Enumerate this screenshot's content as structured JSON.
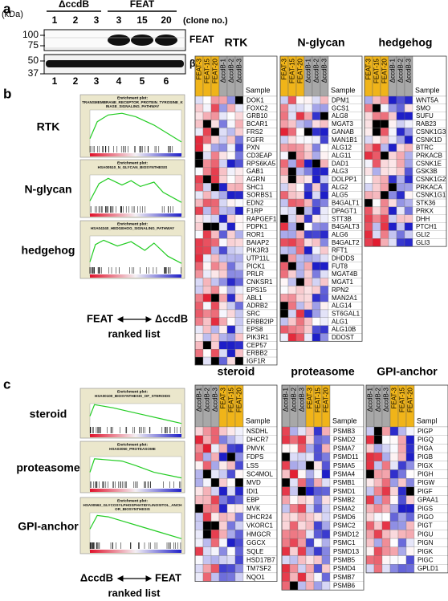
{
  "panel_labels": [
    "a",
    "b",
    "c"
  ],
  "blot": {
    "unit": "(kDa)",
    "groups": [
      "ΔccdB",
      "FEAT"
    ],
    "clones": [
      "1",
      "2",
      "3",
      "3",
      "15",
      "20"
    ],
    "clone_label": "(clone no.)",
    "bands": [
      "FEAT",
      "β-actin"
    ],
    "markers": [
      "100",
      "75",
      "50",
      "37"
    ],
    "lanes": [
      "1",
      "2",
      "3",
      "4",
      "5",
      "6"
    ]
  },
  "gsea_b": {
    "plots": [
      {
        "label": "RTK",
        "heading": "Enrichment plot:",
        "title": "TRANSMEMBRANE_RECEPTOR_PROTEIN_TYROSINE_KINASE_SIGNALING_PATHWAY"
      },
      {
        "label": "N-glycan",
        "heading": "Enrichment plot:",
        "title": "HSA00510_N_GLYCAN_BIOSYNTHESIS"
      },
      {
        "label": "hedgehog",
        "heading": "Enrichment plot:",
        "title": "HSA04340_HEDGEHOG_SIGNALING_PATHWAY"
      }
    ],
    "left": "FEAT",
    "right": "ΔccdB",
    "axis": "ranked list"
  },
  "heatmaps_b": [
    {
      "title": "RTK",
      "columns": [
        "FEAT-3",
        "FEAT-15",
        "FEAT-20",
        "ΔccdB-1",
        "ΔccdB-2",
        "ΔccdB-3"
      ],
      "sample": "Sample",
      "genes": [
        "DOK1",
        "FOXC2",
        "GRB10",
        "BCAR1",
        "FRS2",
        "FGFR",
        "PXN",
        "CD3EAP",
        "RPS6KA5",
        "GAB1",
        "AGRN",
        "SHC1",
        "SORBS1",
        "EDN2",
        "F1RP",
        "RAPGEF1",
        "PDPK1",
        "ROR1",
        "BAIAP2",
        "PIK3R3",
        "UTP11L",
        "PICK1",
        "PRLR",
        "CNKSR1",
        "EPS15",
        "ABL1",
        "ADRB2",
        "SRC",
        "ERBB2IP",
        "EPS8",
        "PIK3R1",
        "CEP57",
        "ERBB2",
        "IGF1R"
      ]
    },
    {
      "title": "N-glycan",
      "columns": [
        "FEAT-3",
        "FEAT-15",
        "FEAT-20",
        "ΔccdB-1",
        "ΔccdB-2",
        "ΔccdB-3"
      ],
      "sample": "Sample",
      "genes": [
        "DPM1",
        "GCS1",
        "ALG8",
        "MGAT3",
        "GANAB",
        "MAN1B1",
        "ALG12",
        "ALG11",
        "DAD1",
        "ALG3",
        "DOLPP1",
        "ALG2",
        "ALG5",
        "B4GALT1",
        "DPAGT1",
        "STT3B",
        "B4GALT3",
        "ALG6",
        "B4GALT2",
        "RFT1",
        "DHDDS",
        "FUT8",
        "MGAT4B",
        "MGAT1",
        "RPN2",
        "MAN2A1",
        "ALG14",
        "ST6GAL1",
        "ALG1",
        "ALG10B",
        "DDOST"
      ]
    },
    {
      "title": "hedgehog",
      "columns": [
        "FEAT-3",
        "FEAT-15",
        "FEAT-20",
        "ΔccdB-1",
        "ΔccdB-2",
        "ΔccdB-3"
      ],
      "sample": "Sample",
      "genes": [
        "WNT5A",
        "SMO",
        "SUFU",
        "RAB23",
        "CSNK1G3",
        "CSNK1D",
        "BTRC",
        "PRKACB",
        "CSNK1E",
        "GSK3B",
        "CSNK1G2",
        "PRKACA",
        "CSNK1G1",
        "STK36",
        "PRKX",
        "DHH",
        "PTCH1",
        "GLI2",
        "GLI3"
      ]
    }
  ],
  "gsea_c": {
    "plots": [
      {
        "label": "steroid",
        "heading": "Enrichment plot:",
        "title": "HSA00100_BIOSYNTHESIS_OF_STEROIDS"
      },
      {
        "label": "proteasome",
        "heading": "Enrichment plot:",
        "title": "HSA03050_PROTEASOME"
      },
      {
        "label": "GPI-anchor",
        "heading": "Enrichment plot:",
        "title": "HSA00563_GLYCOSYLPHOSPHATIDYLINOSITOL_ANCHOR_BIOSYNTHESIS"
      }
    ],
    "left": "ΔccdB",
    "right": "FEAT",
    "axis": "ranked list"
  },
  "heatmaps_c": [
    {
      "title": "steroid",
      "columns": [
        "ΔccdB-1",
        "ΔccdB-2",
        "ΔccdB-3",
        "FEAT-3",
        "FEAT-15",
        "FEAT-20"
      ],
      "sample": "Sample",
      "genes": [
        "NSDHL",
        "DHCR7",
        "PMVK",
        "FDPS",
        "LSS",
        "SC4MOL",
        "MVD",
        "IDI1",
        "EBP",
        "MVK",
        "DHCR24",
        "VKORC1",
        "HMGCR",
        "GGCX",
        "SQLE",
        "HSD17B7",
        "TM7SF2",
        "NQO1"
      ]
    },
    {
      "title": "proteasome",
      "columns": [
        "ΔccdB-1",
        "ΔccdB-2",
        "ΔccdB-3",
        "FEAT-3",
        "FEAT-15",
        "FEAT-20"
      ],
      "sample": "Sample",
      "genes": [
        "PSMB3",
        "PSMD2",
        "PSMA7",
        "PSMD11",
        "PSMA5",
        "PSMA4",
        "PSMB1",
        "PSMD1",
        "PSMB2",
        "PSMA2",
        "PSMD6",
        "PSMC2",
        "PSMD12",
        "PSMC1",
        "PSMD13",
        "PSMB5",
        "PSMD4",
        "PSMB7",
        "PSMB6"
      ]
    },
    {
      "title": "GPI-anchor",
      "columns": [
        "ΔccdB-1",
        "ΔccdB-2",
        "ΔccdB-3",
        "FEAT-3",
        "FEAT-15",
        "FEAT-20"
      ],
      "sample": "Sampl",
      "genes": [
        "PIGP",
        "PIGQ",
        "PIGA",
        "PIGB",
        "PIGX",
        "PIGH",
        "PIGW",
        "PIGF",
        "GPAA1",
        "PIGS",
        "PIGO",
        "PIGT",
        "PIGU",
        "PIGN",
        "PIGK",
        "PIGC",
        "GPLD1"
      ]
    }
  ]
}
